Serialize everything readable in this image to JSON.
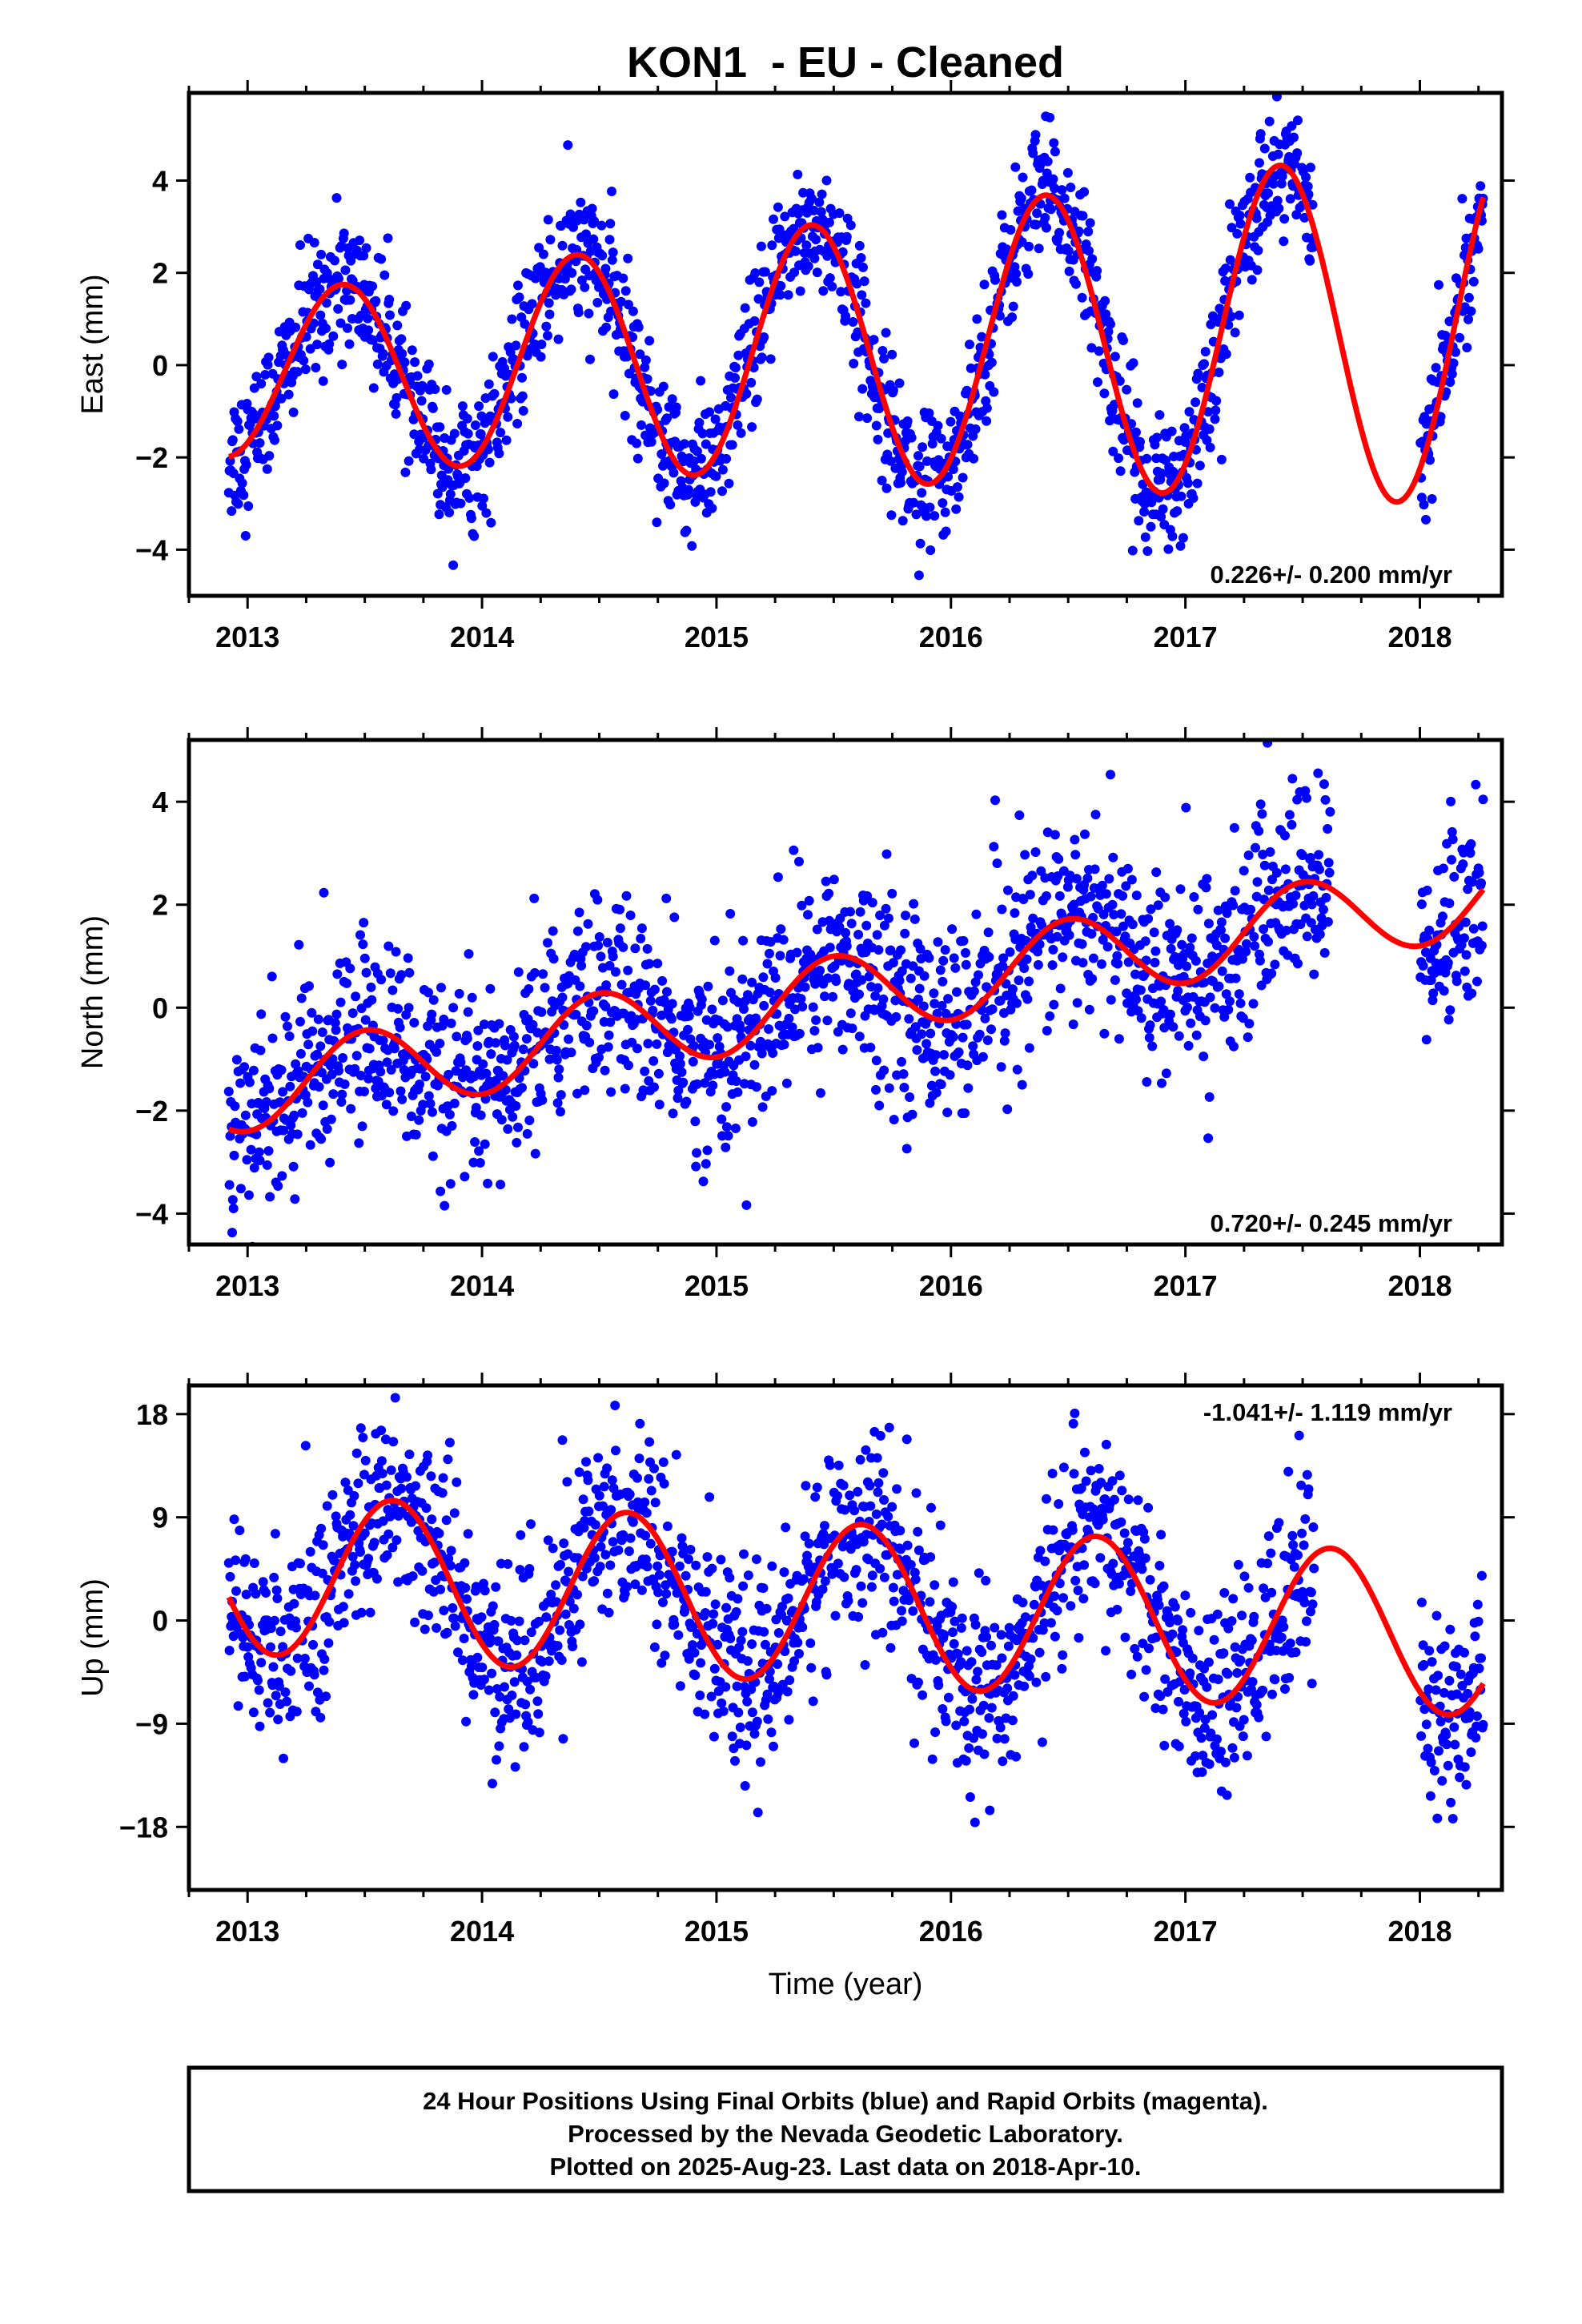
{
  "title": "KON1  - EU - Cleaned",
  "footer": {
    "line1": "24 Hour Positions Using Final Orbits (blue) and Rapid Orbits (magenta).",
    "line2": "Processed by the Nevada Geodetic Laboratory.",
    "line3": "Plotted on 2025-Aug-23. Last data on 2018-Apr-10."
  },
  "colors": {
    "points": "#0000ff",
    "fit": "#ff0000",
    "frame": "#000000"
  },
  "chart_data": [
    {
      "type": "scatter",
      "ylabel": "East (mm)",
      "xlabel": "",
      "xlim": [
        2012.75,
        2018.35
      ],
      "ylim": [
        -5.0,
        5.9
      ],
      "yticks": [
        -4,
        -2,
        0,
        2,
        4
      ],
      "yticklabels": [
        "−4",
        "−2",
        "0",
        "2",
        "4"
      ],
      "xticks": [
        2013,
        2014,
        2015,
        2016,
        2017,
        2018
      ],
      "xticklabels": [
        "2013",
        "2014",
        "2015",
        "2016",
        "2017",
        "2018"
      ],
      "rate_label": "0.226+/- 0.200 mm/yr",
      "rate_position": "bottom-right",
      "fit": {
        "t0": 2015.5,
        "offset": 0.3,
        "trend": 0.226,
        "amplitude": 2.8,
        "phase_year": 2015.4,
        "amp_growth": 0.15
      },
      "noise": 0.75,
      "data_start": 2012.92,
      "data_end": 2018.27,
      "gaps": [
        [
          2017.55,
          2018.0
        ]
      ]
    },
    {
      "type": "scatter",
      "ylabel": "North (mm)",
      "xlabel": "",
      "xlim": [
        2012.75,
        2018.35
      ],
      "ylim": [
        -4.6,
        5.2
      ],
      "yticks": [
        -4,
        -2,
        0,
        2,
        4
      ],
      "yticklabels": [
        "−4",
        "−2",
        "0",
        "2",
        "4"
      ],
      "xticks": [
        2013,
        2014,
        2015,
        2016,
        2017,
        2018
      ],
      "xticklabels": [
        "2013",
        "2014",
        "2015",
        "2016",
        "2017",
        "2018"
      ],
      "rate_label": "0.720+/- 0.245 mm/yr",
      "rate_position": "bottom-right",
      "fit": {
        "t0": 2015.5,
        "offset": 0.2,
        "trend": 0.72,
        "amplitude": 0.8,
        "phase_year": 2015.5,
        "amp_growth": 0.0
      },
      "noise": 0.95,
      "data_start": 2012.92,
      "data_end": 2018.27,
      "gaps": [
        [
          2017.62,
          2018.0
        ]
      ]
    },
    {
      "type": "scatter",
      "ylabel": "Up (mm)",
      "xlabel": "Time (year)",
      "xlim": [
        2012.75,
        2018.35
      ],
      "ylim": [
        -23.5,
        20.5
      ],
      "yticks": [
        -18,
        -9,
        0,
        9,
        18
      ],
      "yticklabels": [
        "−18",
        "−9",
        "0",
        "9",
        "18"
      ],
      "xticks": [
        2013,
        2014,
        2015,
        2016,
        2017,
        2018
      ],
      "xticklabels": [
        "2013",
        "2014",
        "2015",
        "2016",
        "2017",
        "2018"
      ],
      "rate_label": "-1.041+/- 1.119 mm/yr",
      "rate_position": "top-right",
      "fit": {
        "t0": 2015.5,
        "offset": 1.5,
        "trend": -1.041,
        "amplitude": 7.0,
        "phase_year": 2015.62,
        "amp_growth": 0.0
      },
      "noise": 4.3,
      "data_start": 2012.92,
      "data_end": 2018.27,
      "gaps": [
        [
          2017.55,
          2018.0
        ]
      ]
    }
  ]
}
